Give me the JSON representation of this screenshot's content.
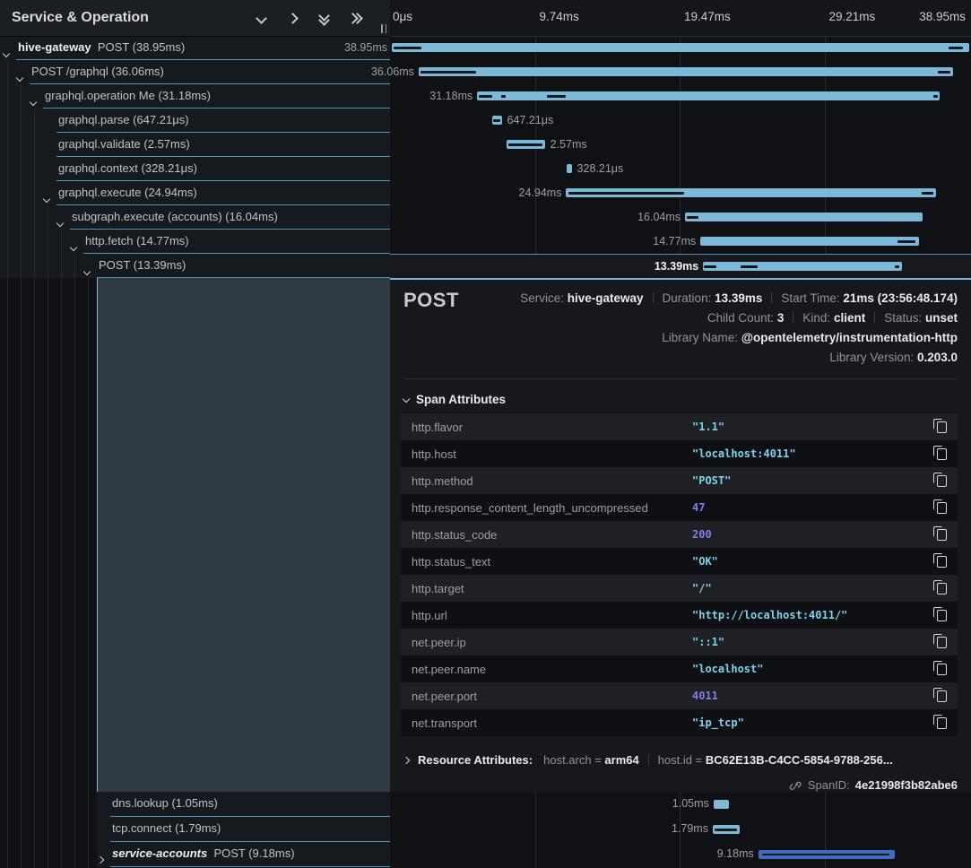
{
  "panel": {
    "title": "Service & Operation",
    "icons": [
      {
        "name": "chevron-down-icon"
      },
      {
        "name": "chevron-right-icon"
      },
      {
        "name": "double-chevron-down-icon"
      },
      {
        "name": "double-chevron-right-icon"
      }
    ]
  },
  "timeline": {
    "total_ms": 38.95,
    "ticks": [
      "0μs",
      "9.74ms",
      "19.47ms",
      "29.21ms",
      "38.95ms"
    ]
  },
  "spans": [
    {
      "service": "hive-gateway",
      "service_style": "bold",
      "text": "POST (38.95ms)",
      "level": 0,
      "chevron": "down",
      "start_ms": 0,
      "duration_ms": 38.95,
      "duration_label": "38.95ms",
      "label_side": "left",
      "section": "top",
      "marks": [
        {
          "at": 0.1,
          "len": 1.9
        },
        {
          "at": 37.55,
          "len": 0.95
        }
      ]
    },
    {
      "text": "POST /graphql (36.06ms)",
      "level": 1,
      "chevron": "down",
      "start_ms": 1.81,
      "duration_ms": 36.06,
      "duration_label": "36.06ms",
      "label_side": "left",
      "section": "top",
      "marks": [
        {
          "at": 1.95,
          "len": 3.75
        },
        {
          "at": 36.85,
          "len": 0.85
        }
      ]
    },
    {
      "text": "graphql.operation Me (31.18ms)",
      "level": 2,
      "chevron": "down",
      "start_ms": 5.76,
      "duration_ms": 31.18,
      "duration_label": "31.18ms",
      "label_side": "left",
      "section": "top",
      "marks": [
        {
          "at": 5.85,
          "len": 0.95
        },
        {
          "at": 7.35,
          "len": 0.35
        },
        {
          "at": 10.45,
          "len": 1.3
        },
        {
          "at": 36.55,
          "len": 0.3
        }
      ]
    },
    {
      "text": "graphql.parse (647.21μs)",
      "level": 3,
      "chevron": null,
      "start_ms": 6.76,
      "duration_ms": 0.65,
      "duration_label": "647.21μs",
      "label_side": "right",
      "section": "top",
      "marks": [
        {
          "at": 6.83,
          "len": 0.5
        }
      ]
    },
    {
      "text": "graphql.validate (2.57ms)",
      "level": 3,
      "chevron": null,
      "start_ms": 7.75,
      "duration_ms": 2.57,
      "duration_label": "2.57ms",
      "label_side": "right",
      "section": "top",
      "marks": [
        {
          "at": 7.88,
          "len": 2.3
        }
      ]
    },
    {
      "text": "graphql.context (328.21μs)",
      "level": 3,
      "chevron": null,
      "start_ms": 11.8,
      "duration_ms": 0.33,
      "duration_label": "328.21μs",
      "label_side": "right",
      "section": "top",
      "marks": []
    },
    {
      "text": "graphql.execute (24.94ms)",
      "level": 3,
      "chevron": "down",
      "start_ms": 11.76,
      "duration_ms": 24.94,
      "duration_label": "24.94ms",
      "label_side": "left",
      "section": "top",
      "marks": [
        {
          "at": 11.9,
          "len": 7.8
        },
        {
          "at": 35.75,
          "len": 0.8
        }
      ]
    },
    {
      "text": "subgraph.execute (accounts) (16.04ms)",
      "level": 4,
      "chevron": "down",
      "start_ms": 19.78,
      "duration_ms": 16.04,
      "duration_label": "16.04ms",
      "label_side": "left",
      "section": "top",
      "marks": [
        {
          "at": 19.9,
          "len": 0.8
        }
      ]
    },
    {
      "text": "http.fetch (14.77ms)",
      "level": 5,
      "chevron": "down",
      "start_ms": 20.82,
      "duration_ms": 14.77,
      "duration_label": "14.77ms",
      "label_side": "left",
      "section": "top",
      "marks": [
        {
          "at": 34.1,
          "len": 1.2
        }
      ]
    },
    {
      "text": "POST (13.39ms)",
      "level": 6,
      "chevron": "down",
      "start_ms": 21.0,
      "duration_ms": 13.39,
      "duration_label": "13.39ms",
      "label_side": "left",
      "section": "top",
      "selected": true,
      "marks": [
        {
          "at": 21.0,
          "len": 0.85
        },
        {
          "at": 23.55,
          "len": 1.15
        },
        {
          "at": 33.95,
          "len": 0.3
        }
      ]
    },
    {
      "text": "dns.lookup (1.05ms)",
      "level": 7,
      "chevron": null,
      "start_ms": 21.7,
      "duration_ms": 1.05,
      "duration_label": "1.05ms",
      "label_side": "left",
      "section": "bottom",
      "marks": []
    },
    {
      "text": "tcp.connect (1.79ms)",
      "level": 7,
      "chevron": null,
      "start_ms": 21.65,
      "duration_ms": 1.79,
      "duration_label": "1.79ms",
      "label_side": "left",
      "section": "bottom",
      "marks": [
        {
          "at": 21.75,
          "len": 1.55
        }
      ]
    },
    {
      "service": "service-accounts",
      "service_style": "bold-italic",
      "text": "POST (9.18ms)",
      "level": 7,
      "chevron": "right",
      "start_ms": 24.72,
      "duration_ms": 9.18,
      "duration_label": "9.18ms",
      "label_side": "left",
      "section": "bottom",
      "bar_color": "alt",
      "marks": [
        {
          "at": 24.95,
          "len": 8.6,
          "thin": true
        },
        {
          "at": 27.9,
          "len": 0.12,
          "tick": true
        },
        {
          "at": 28.25,
          "len": 0.12,
          "tick": true
        },
        {
          "at": 28.8,
          "len": 0.12,
          "tick": true
        },
        {
          "at": 30.6,
          "len": 0.12,
          "tick": true
        },
        {
          "at": 30.95,
          "len": 0.12,
          "tick": true
        },
        {
          "at": 31.4,
          "len": 0.12,
          "tick": true
        }
      ]
    }
  ],
  "detail": {
    "title": "POST",
    "meta_lines": [
      [
        {
          "label": "Service:",
          "value": "hive-gateway"
        },
        {
          "label": "Duration:",
          "value": "13.39ms"
        },
        {
          "label": "Start Time:",
          "value": "21ms (23:56:48.174)"
        }
      ],
      [
        {
          "label": "Child Count:",
          "value": "3"
        },
        {
          "label": "Kind:",
          "value": "client"
        },
        {
          "label": "Status:",
          "value": "unset"
        }
      ],
      [
        {
          "label": "Library Name:",
          "value": "@opentelemetry/instrumentation-http"
        }
      ],
      [
        {
          "label": "Library Version:",
          "value": "0.203.0"
        }
      ]
    ],
    "attributes_title": "Span Attributes",
    "attributes": [
      {
        "key": "http.flavor",
        "value": "\"1.1\"",
        "type": "string"
      },
      {
        "key": "http.host",
        "value": "\"localhost:4011\"",
        "type": "string"
      },
      {
        "key": "http.method",
        "value": "\"POST\"",
        "type": "string"
      },
      {
        "key": "http.response_content_length_uncompressed",
        "value": "47",
        "type": "number"
      },
      {
        "key": "http.status_code",
        "value": "200",
        "type": "number"
      },
      {
        "key": "http.status_text",
        "value": "\"OK\"",
        "type": "string"
      },
      {
        "key": "http.target",
        "value": "\"/\"",
        "type": "string"
      },
      {
        "key": "http.url",
        "value": "\"http://localhost:4011/\"",
        "type": "string"
      },
      {
        "key": "net.peer.ip",
        "value": "\"::1\"",
        "type": "string"
      },
      {
        "key": "net.peer.name",
        "value": "\"localhost\"",
        "type": "string"
      },
      {
        "key": "net.peer.port",
        "value": "4011",
        "type": "number"
      },
      {
        "key": "net.transport",
        "value": "\"ip_tcp\"",
        "type": "string"
      }
    ],
    "resource": {
      "title": "Resource Attributes:",
      "pairs": [
        {
          "key": "host.arch",
          "value": "arm64"
        },
        {
          "key": "host.id",
          "value": "BC62E13B-C4CC-5854-9788-256..."
        }
      ]
    },
    "span_id": {
      "label": "SpanID:",
      "value": "4e21998f3b82abe6"
    }
  },
  "colors": {
    "bar": "#7db8d8",
    "bar_alt": "#3e6dbf",
    "accent": "#7db8d8",
    "row_border": "#4f93b8",
    "string_value": "#7fd2ea",
    "number_value": "#7c82e8"
  }
}
